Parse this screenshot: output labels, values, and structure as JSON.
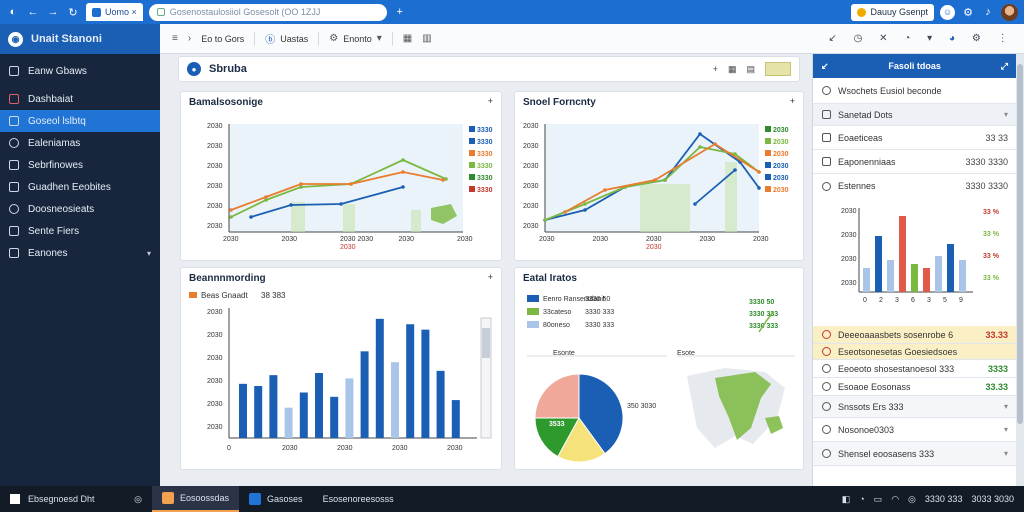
{
  "browser": {
    "tab_label": "Uomo ×",
    "address": "Gosenostaulosiiol Gosesolt (OO 1ZJJ",
    "profile_label": "Dauuy Gsenpt",
    "new_tab": "+"
  },
  "sidebar": {
    "brand": "Unait Stanoni",
    "items": [
      {
        "label": "Eanw Gbaws"
      },
      {
        "label": "Dashbaiat"
      },
      {
        "label": "Goseol lslbtq"
      },
      {
        "label": "Ealeniamas"
      },
      {
        "label": "Sebrfinowes"
      },
      {
        "label": "Guadhen Eeobites"
      },
      {
        "label": "Doosneosieats"
      },
      {
        "label": "Sente Fiers"
      },
      {
        "label": "Eanones"
      }
    ],
    "active_index": 2
  },
  "toolbar": {
    "menu_icon": "≡",
    "item1": "Eo to Gors",
    "item2": "Uastas",
    "item3": "Enonto",
    "table_icon": "▦"
  },
  "page": {
    "title": "Sbruba"
  },
  "cards": {
    "card1": {
      "title": "Bamalsosonige",
      "yticks": [
        "2030",
        "2030",
        "2030",
        "2030",
        "2030",
        "2030"
      ],
      "xticks": [
        "2030",
        "2030",
        "2030 2030",
        "2030",
        "2030"
      ],
      "xsub": "2030",
      "legend": [
        "3330",
        "3330",
        "3330",
        "3330",
        "3330",
        "3330"
      ],
      "legend_colors": [
        "#1a5fb4",
        "#1a5fb4",
        "#e97c2e",
        "#7ab840",
        "#2e8b2e",
        "#c0392b"
      ]
    },
    "card2": {
      "title": "Snoel Forncnty",
      "yticks": [
        "2030",
        "2030",
        "2030",
        "2030",
        "2030",
        "2030"
      ],
      "xticks": [
        "2030",
        "2030",
        "2030",
        "2030",
        "2030"
      ],
      "xsub": "2030",
      "legend": [
        "2030",
        "2030",
        "2030",
        "2030",
        "2030",
        "2030"
      ],
      "legend_colors": [
        "#2e8b2e",
        "#7ab840",
        "#e97c2e",
        "#1a5fb4",
        "#1a5fb4",
        "#e97c2e"
      ]
    },
    "card3": {
      "title": "Beannnmording",
      "legend_label": "Beas Gnaadt",
      "legend_value": "38 383",
      "yticks": [
        "2030",
        "2030",
        "2030",
        "2030",
        "2030",
        "2030"
      ],
      "xticks": [
        "0",
        "2030",
        "2030",
        "2030",
        "2030"
      ],
      "values": [
        50,
        48,
        58,
        28,
        42,
        60,
        38,
        55,
        80,
        110,
        70,
        105,
        100,
        62,
        35
      ],
      "colors": [
        "#1a5fb4",
        "#1a5fb4",
        "#1a5fb4",
        "#a9c6e8",
        "#1a5fb4",
        "#1a5fb4",
        "#1a5fb4",
        "#a9c6e8",
        "#1a5fb4",
        "#1a5fb4",
        "#a9c6e8",
        "#1a5fb4",
        "#1a5fb4",
        "#1a5fb4",
        "#1a5fb4"
      ]
    },
    "card4": {
      "title": "Eatal Iratos",
      "legend": [
        {
          "label": "Eenro Ransentdanit",
          "value": "3330 50",
          "color": "#1a5fb4"
        },
        {
          "label": "33cateso",
          "value": "3330 333",
          "color": "#7ab840"
        },
        {
          "label": "80oneso",
          "value": "3330 333",
          "color": "#a9c6e8"
        }
      ],
      "right_values": [
        "3330 50",
        "3330 333",
        "3330 333"
      ],
      "pie_label": "Esonte",
      "map_label": "Esote",
      "pie_inside_label": "3533",
      "pie_side_label": "350 3030",
      "pie_values": [
        40,
        18,
        17,
        25
      ],
      "pie_colors": [
        "#1a5fb4",
        "#f5e27a",
        "#2e9a2e",
        "#f0a89a"
      ]
    }
  },
  "right_panel": {
    "title": "Fasoli tdoas",
    "rows": [
      {
        "label": "Wsochets Eusiol beconde",
        "value": ""
      },
      {
        "label": "Sanetad Dots",
        "value": ""
      },
      {
        "label": "Eoaeticeas",
        "value": "33 33"
      },
      {
        "label": "Eaponenniaas",
        "value": "3330 3330"
      },
      {
        "label": "Estennes",
        "value": "3330 3330"
      }
    ],
    "chart": {
      "yticks": [
        "2030",
        "2030",
        "2030",
        "2030"
      ],
      "xticks": [
        "0",
        "2",
        "3",
        "6",
        "3",
        "5",
        "9"
      ],
      "legend": [
        "33 %",
        "33 %",
        "33 %",
        "33 %"
      ],
      "legend_colors": [
        "#c0392b",
        "#7ab840",
        "#c0392b",
        "#7ab840"
      ],
      "values": [
        30,
        70,
        40,
        95,
        35,
        30,
        45,
        60,
        40
      ],
      "colors": [
        "#a9c6e8",
        "#1a5fb4",
        "#a9c6e8",
        "#e05a4a",
        "#7ab840",
        "#e05a4a",
        "#a9c6e8",
        "#1a5fb4",
        "#a9c6e8"
      ]
    },
    "status_rows": [
      {
        "label": "Deeeoaaasbets sosenrobe 6",
        "value": "33.33",
        "highlight": true
      },
      {
        "label": "Eseotsonesetas Goesiedsoes",
        "value": ""
      },
      {
        "label": "Eeoeoto shosestanoesol 333",
        "value": "3333"
      },
      {
        "label": "Esoaoe Eosonass",
        "value": "33.33"
      },
      {
        "label": "Snssots Ers 333",
        "value": ""
      },
      {
        "label": "Nosonoe0303",
        "value": ""
      },
      {
        "label": "Shensel eoosasens 333",
        "value": ""
      }
    ]
  },
  "taskbar": {
    "start_label": "Ebsegnoesd Dht",
    "apps": [
      "Eosoossdas",
      "Gasoses",
      "Esosenoreesosss"
    ],
    "time": "3330 333",
    "date": "3033 3030"
  }
}
